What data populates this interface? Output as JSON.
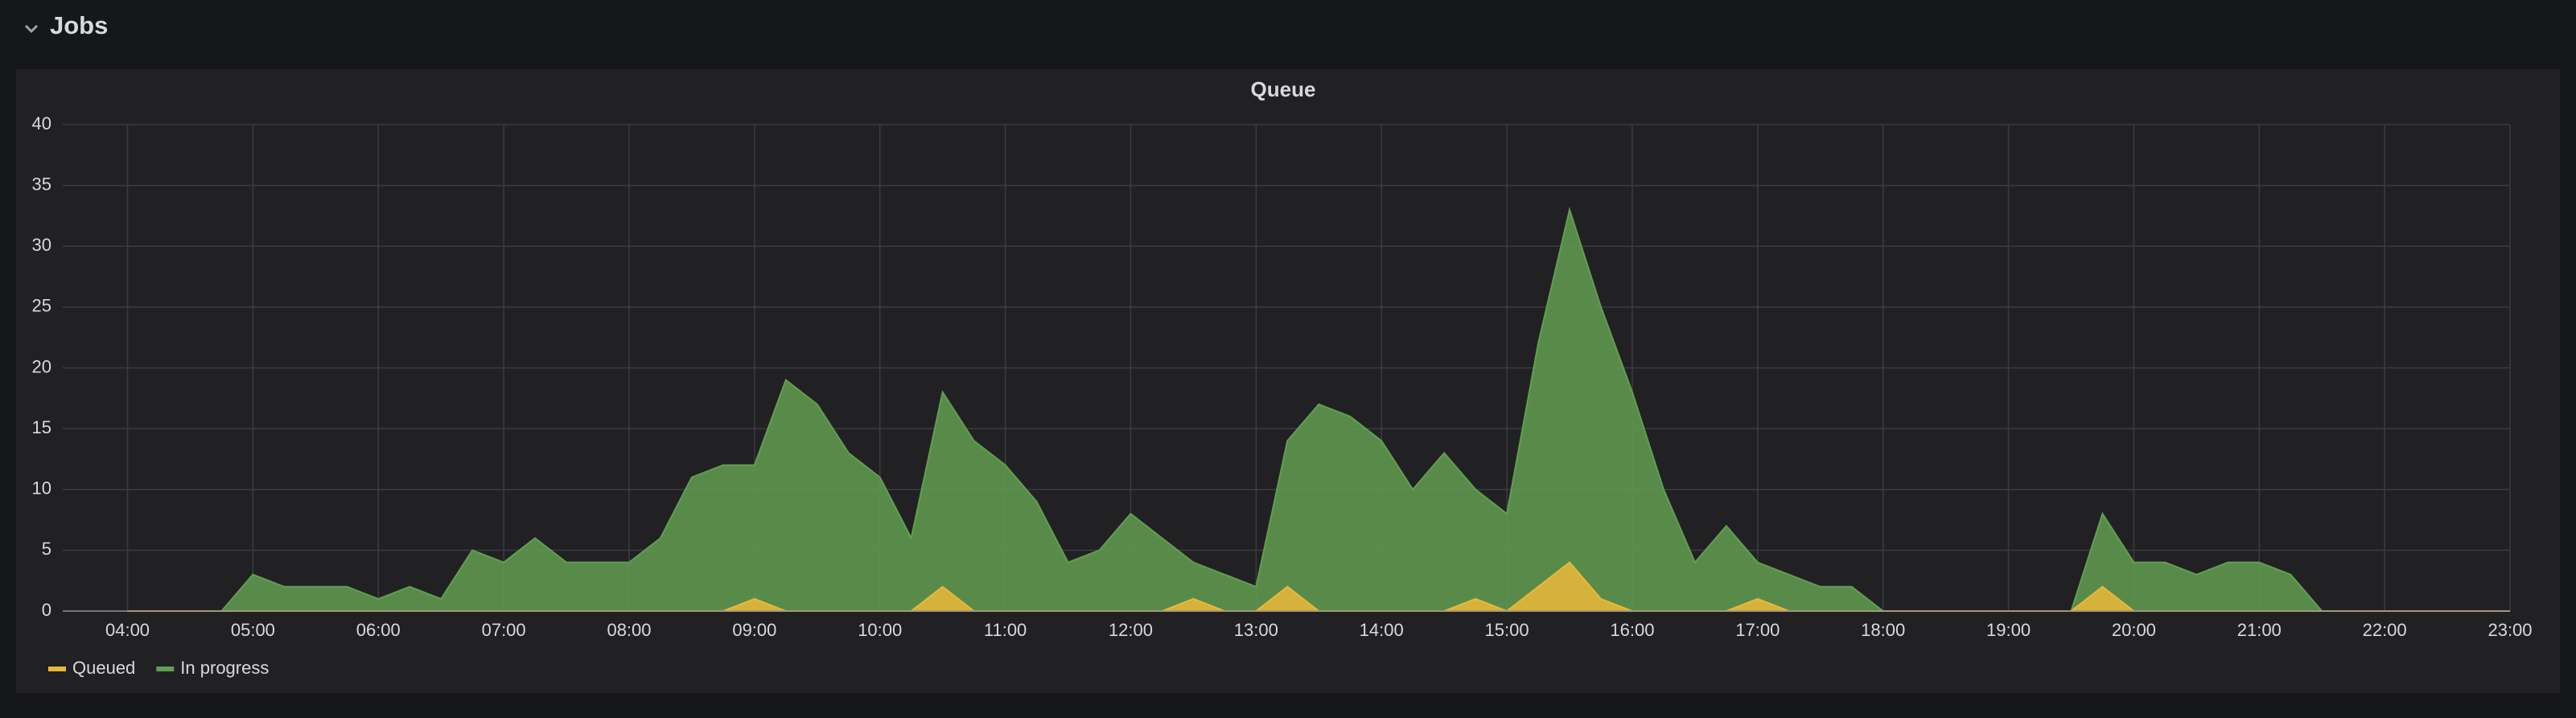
{
  "header": {
    "title": "Jobs"
  },
  "chart_data": {
    "type": "area",
    "title": "Queue",
    "x": [
      "04:00",
      "04:15",
      "04:30",
      "04:45",
      "05:00",
      "05:15",
      "05:30",
      "05:45",
      "06:00",
      "06:15",
      "06:30",
      "06:45",
      "07:00",
      "07:15",
      "07:30",
      "07:45",
      "08:00",
      "08:15",
      "08:30",
      "08:45",
      "09:00",
      "09:15",
      "09:30",
      "09:45",
      "10:00",
      "10:15",
      "10:30",
      "10:45",
      "11:00",
      "11:15",
      "11:30",
      "11:45",
      "12:00",
      "12:15",
      "12:30",
      "12:45",
      "13:00",
      "13:15",
      "13:30",
      "13:45",
      "14:00",
      "14:15",
      "14:30",
      "14:45",
      "15:00",
      "15:15",
      "15:30",
      "15:45",
      "16:00",
      "16:15",
      "16:30",
      "16:45",
      "17:00",
      "17:15",
      "17:30",
      "17:45",
      "18:00",
      "18:15",
      "18:30",
      "18:45",
      "19:00",
      "19:15",
      "19:30",
      "19:45",
      "20:00",
      "20:15",
      "20:30",
      "20:45",
      "21:00",
      "21:15",
      "21:30",
      "21:45",
      "22:00",
      "22:15",
      "22:30",
      "22:45",
      "23:00"
    ],
    "series": [
      {
        "name": "In progress",
        "color": "#629e51",
        "values": [
          0,
          0,
          0,
          0,
          3,
          2,
          2,
          2,
          1,
          2,
          1,
          5,
          4,
          6,
          4,
          4,
          4,
          6,
          11,
          12,
          12,
          19,
          17,
          13,
          11,
          6,
          18,
          14,
          12,
          9,
          4,
          5,
          8,
          6,
          4,
          3,
          2,
          14,
          17,
          16,
          14,
          10,
          13,
          10,
          8,
          22,
          33,
          25,
          18,
          10,
          4,
          7,
          4,
          3,
          2,
          2,
          0,
          0,
          0,
          0,
          0,
          0,
          0,
          8,
          4,
          4,
          3,
          4,
          4,
          3,
          0,
          0,
          0,
          0,
          0,
          0,
          0
        ]
      },
      {
        "name": "Queued",
        "color": "#eab839",
        "values": [
          0,
          0,
          0,
          0,
          0,
          0,
          0,
          0,
          0,
          0,
          0,
          0,
          0,
          0,
          0,
          0,
          0,
          0,
          0,
          0,
          1,
          0,
          0,
          0,
          0,
          0,
          2,
          0,
          0,
          0,
          0,
          0,
          0,
          0,
          1,
          0,
          0,
          2,
          0,
          0,
          0,
          0,
          0,
          1,
          0,
          2,
          4,
          1,
          0,
          0,
          0,
          0,
          1,
          0,
          0,
          0,
          0,
          0,
          0,
          0,
          0,
          0,
          0,
          2,
          0,
          0,
          0,
          0,
          0,
          0,
          0,
          0,
          0,
          0,
          0,
          0,
          0
        ]
      }
    ],
    "legend_order": [
      "Queued",
      "In progress"
    ],
    "xlim": [
      "03:29",
      "23:00"
    ],
    "xticks": [
      "04:00",
      "05:00",
      "06:00",
      "07:00",
      "08:00",
      "09:00",
      "10:00",
      "11:00",
      "12:00",
      "13:00",
      "14:00",
      "15:00",
      "16:00",
      "17:00",
      "18:00",
      "19:00",
      "20:00",
      "21:00",
      "22:00",
      "23:00"
    ],
    "ylim": [
      0,
      40
    ],
    "yticks": [
      0,
      5,
      10,
      15,
      20,
      25,
      30,
      35,
      40
    ],
    "grid": true
  }
}
